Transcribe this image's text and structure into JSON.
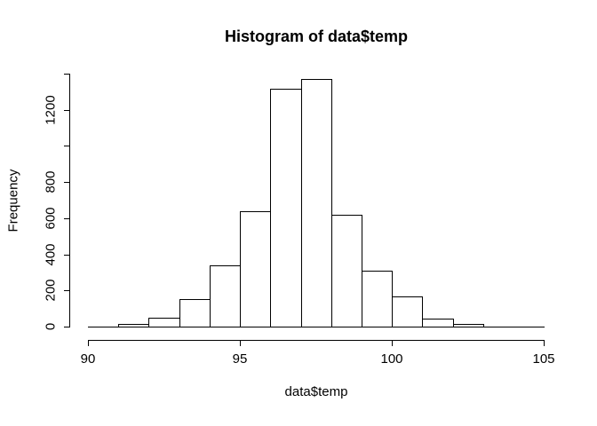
{
  "window": {
    "background_color": "#ffffff",
    "foreground_color": "#000000"
  },
  "chart_data": {
    "type": "bar",
    "subtype": "histogram",
    "title": "Histogram of data$temp",
    "xlabel": "data$temp",
    "ylabel": "Frequency",
    "bin_edges": [
      91,
      92,
      93,
      94,
      95,
      96,
      97,
      98,
      99,
      100,
      101,
      102,
      103
    ],
    "counts": [
      15,
      50,
      150,
      340,
      640,
      1315,
      1370,
      620,
      310,
      165,
      45,
      15
    ],
    "xlim": [
      90,
      105
    ],
    "ylim": [
      0,
      1400
    ],
    "x_ticks": [
      90,
      95,
      100,
      105
    ],
    "x_tick_labels": [
      "90",
      "95",
      "100",
      "105"
    ],
    "y_ticks": [
      0,
      200,
      400,
      600,
      800,
      1000,
      1200,
      1400
    ],
    "y_tick_labels": [
      "0",
      "200",
      "400",
      "600",
      "800",
      "",
      "1200",
      ""
    ],
    "bar_fill": "#ffffff",
    "bar_border": "#000000",
    "grid": "off",
    "legend": "none"
  }
}
